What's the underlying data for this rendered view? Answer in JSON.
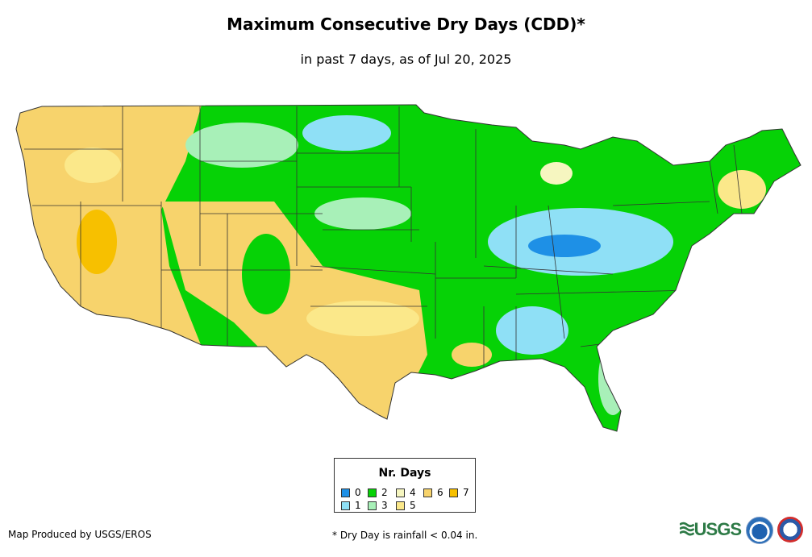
{
  "title": "Maximum Consecutive Dry Days (CDD)*",
  "subtitle": "in past 7 days, as of Jul 20, 2025",
  "legend": {
    "title": "Nr. Days",
    "items": [
      {
        "label": "0",
        "color": "#1e90e6"
      },
      {
        "label": "1",
        "color": "#8fe0f6"
      },
      {
        "label": "2",
        "color": "#06d206"
      },
      {
        "label": "3",
        "color": "#a8f0b8"
      },
      {
        "label": "4",
        "color": "#f6f6c0"
      },
      {
        "label": "5",
        "color": "#fbe88a"
      },
      {
        "label": "6",
        "color": "#f7d36c"
      },
      {
        "label": "7",
        "color": "#f7c000"
      }
    ]
  },
  "footer": {
    "produced_by": "Map Produced by USGS/EROS",
    "note": "* Dry Day is rainfall < 0.04 in."
  },
  "logos": {
    "usgs_text": "USGS"
  }
}
